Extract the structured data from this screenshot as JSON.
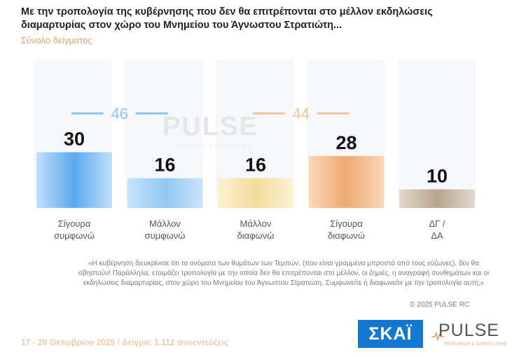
{
  "title": "Με την τροπολογία της κυβέρνησης που δεν θα επιτρέπονται στο μέλλον εκδηλώσεις διαμαρτυρίας στον χώρο του Μνημείου του Άγνωστου Στρατιώτη...",
  "subtitle": "Σύνολο δείγματος",
  "watermark": {
    "brand": "PULSE",
    "tagline": "RESEARCH & CONSULTING"
  },
  "chart_data": {
    "type": "bar",
    "categories": [
      [
        "Σίγουρα",
        "συμφωνώ"
      ],
      [
        "Μάλλον",
        "συμφωνώ"
      ],
      [
        "Μάλλον",
        "διαφωνώ"
      ],
      [
        "Σίγουρα",
        "διαφωνώ"
      ],
      [
        "ΔΓ /",
        "ΔΑ"
      ]
    ],
    "values": [
      30,
      16,
      16,
      28,
      10
    ],
    "colors": [
      [
        "#bfe0fb",
        "#5ba9ed"
      ],
      [
        "#c9e4fb",
        "#93c7f3"
      ],
      [
        "#fcf2d2",
        "#f3dc9c"
      ],
      [
        "#fad9bb",
        "#eea96f"
      ],
      [
        "#e2d9cd",
        "#b8a38d"
      ]
    ],
    "groups": [
      {
        "value": "46",
        "color": "#8ec3ef"
      },
      {
        "value": "44",
        "color": "#f2c393"
      }
    ]
  },
  "footnote": "«Η κυβέρνηση διευκρίνισε ότι τα ονόματα των θυμάτων των Τεμπών, (που είναι γραμμένα μπροστά από τους εύζωνες), δεν θα σβηστούν! Παράλληλα, ετοιμάζει τροπολογία με την οποία δεν θα επιτρέπονται στο μέλλον, οι ζημιές, η αναγραφή συνθημάτων και οι εκδηλώσεις διαμαρτυρίας, στον χώρο του Μνημείου του Άγνωστου Στρατιώτη. Συμφωνείτε ή διαφωνείτε με την τροπολογία αυτή;»",
  "copyright": "© 2025 PULSE RC",
  "footer": "17 - 20 Οκτωβρίου 2025  /  Δείγμα:  1.112 συνεντεύξεις",
  "logos": {
    "skai": "ΣΚΑΪ",
    "pulse": "PULSE",
    "pulse_tagline": "RESEARCH & CONSULTING"
  }
}
